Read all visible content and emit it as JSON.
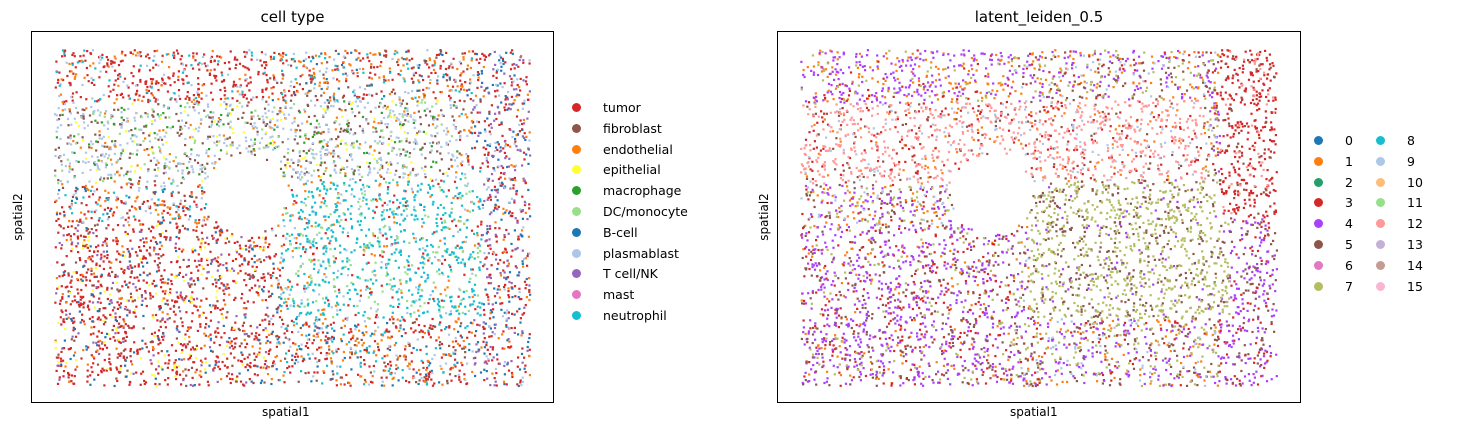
{
  "chart_data": [
    {
      "type": "scatter",
      "title": "cell type",
      "xlabel": "spatial1",
      "ylabel": "spatial2",
      "grid": false,
      "ticks": false,
      "legend_position": "right",
      "legend_columns": 1,
      "categories": [
        {
          "name": "tumor",
          "color": "#d62728"
        },
        {
          "name": "fibroblast",
          "color": "#8c564b"
        },
        {
          "name": "endothelial",
          "color": "#ff7f0e"
        },
        {
          "name": "epithelial",
          "color": "#ffff33"
        },
        {
          "name": "macrophage",
          "color": "#2ca02c"
        },
        {
          "name": "DC/monocyte",
          "color": "#98df8a"
        },
        {
          "name": "B-cell",
          "color": "#1f77b4"
        },
        {
          "name": "plasmablast",
          "color": "#aec7e8"
        },
        {
          "name": "T cell/NK",
          "color": "#9467bd"
        },
        {
          "name": "mast",
          "color": "#e377c2"
        },
        {
          "name": "neutrophil",
          "color": "#17becf"
        }
      ]
    },
    {
      "type": "scatter",
      "title": "latent_leiden_0.5",
      "xlabel": "spatial1",
      "ylabel": "spatial2",
      "grid": false,
      "ticks": false,
      "legend_position": "right",
      "legend_columns": 2,
      "categories": [
        {
          "name": "0",
          "color": "#1f77b4"
        },
        {
          "name": "1",
          "color": "#ff7f0e"
        },
        {
          "name": "2",
          "color": "#279e68"
        },
        {
          "name": "3",
          "color": "#d62728"
        },
        {
          "name": "4",
          "color": "#aa40fc"
        },
        {
          "name": "5",
          "color": "#8c564b"
        },
        {
          "name": "6",
          "color": "#e377c2"
        },
        {
          "name": "7",
          "color": "#b5bd61"
        },
        {
          "name": "8",
          "color": "#17becf"
        },
        {
          "name": "9",
          "color": "#aec7e8"
        },
        {
          "name": "10",
          "color": "#ffbb78"
        },
        {
          "name": "11",
          "color": "#98df8a"
        },
        {
          "name": "12",
          "color": "#ff9896"
        },
        {
          "name": "13",
          "color": "#c5b0d5"
        },
        {
          "name": "14",
          "color": "#c49c94"
        },
        {
          "name": "15",
          "color": "#f7b6d2"
        }
      ]
    }
  ]
}
